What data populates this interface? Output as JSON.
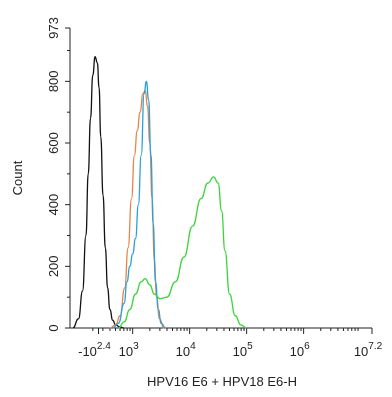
{
  "chart_data": {
    "type": "line",
    "xlabel": "HPV16 E6 + HPV18 E6-H",
    "ylabel": "Count",
    "ylim": [
      0,
      973
    ],
    "xlim_decades": [
      1.9,
      7.2
    ],
    "yticks": [
      "0",
      "200",
      "400",
      "600",
      "800",
      "973"
    ],
    "ytick_values": [
      0,
      200,
      400,
      600,
      800,
      973
    ],
    "xticks": [
      {
        "base": "-10",
        "exp": "2.4",
        "pos": 2.4
      },
      {
        "base": "10",
        "exp": "3",
        "pos": 3
      },
      {
        "base": "10",
        "exp": "4",
        "pos": 4
      },
      {
        "base": "10",
        "exp": "5",
        "pos": 5
      },
      {
        "base": "10",
        "exp": "6",
        "pos": 6
      },
      {
        "base": "10",
        "exp": "7.2",
        "pos": 7.2
      }
    ],
    "grid": false,
    "legend": "none",
    "series": [
      {
        "color": "#111111",
        "x": [
          1.95,
          2.05,
          2.12,
          2.18,
          2.22,
          2.26,
          2.3,
          2.34,
          2.38,
          2.41,
          2.44,
          2.48,
          2.52,
          2.56,
          2.6,
          2.65,
          2.7,
          2.78,
          2.85
        ],
        "y": [
          0,
          30,
          120,
          300,
          500,
          680,
          820,
          880,
          860,
          780,
          620,
          430,
          260,
          130,
          60,
          25,
          10,
          3,
          0
        ]
      },
      {
        "color": "#e8844a",
        "x": [
          2.6,
          2.7,
          2.78,
          2.86,
          2.92,
          2.98,
          3.03,
          3.08,
          3.13,
          3.18,
          3.22,
          3.26,
          3.3,
          3.34,
          3.38,
          3.42,
          3.47,
          3.55
        ],
        "y": [
          0,
          10,
          40,
          130,
          260,
          420,
          560,
          640,
          700,
          760,
          770,
          720,
          600,
          420,
          220,
          100,
          30,
          0
        ]
      },
      {
        "color": "#2aa0d8",
        "x": [
          2.65,
          2.75,
          2.85,
          2.9,
          2.95,
          3.0,
          3.05,
          3.1,
          3.15,
          3.2,
          3.24,
          3.28,
          3.32,
          3.36,
          3.4,
          3.45,
          3.5,
          3.58
        ],
        "y": [
          0,
          15,
          80,
          150,
          200,
          240,
          290,
          400,
          560,
          760,
          800,
          740,
          560,
          340,
          150,
          60,
          15,
          0
        ]
      },
      {
        "color": "#3bd43b",
        "x": [
          2.75,
          2.85,
          2.95,
          3.05,
          3.15,
          3.22,
          3.3,
          3.38,
          3.48,
          3.6,
          3.75,
          3.9,
          4.05,
          4.2,
          4.32,
          4.42,
          4.5,
          4.56,
          4.62,
          4.7,
          4.8,
          4.9,
          5.0
        ],
        "y": [
          0,
          20,
          60,
          110,
          150,
          160,
          140,
          110,
          95,
          100,
          150,
          230,
          330,
          420,
          470,
          490,
          470,
          380,
          250,
          110,
          40,
          10,
          0
        ]
      }
    ]
  }
}
